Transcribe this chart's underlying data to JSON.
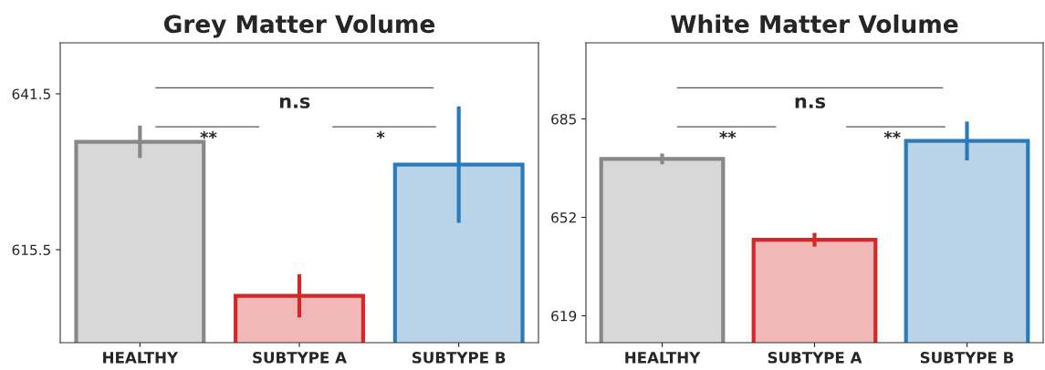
{
  "chart_data": [
    {
      "type": "bar",
      "title": "Grey Matter Volume",
      "categories": [
        "HEALTHY",
        "SUBTYPE A",
        "SUBTYPE B"
      ],
      "values": [
        633.5,
        607.8,
        629.7
      ],
      "errors": [
        2.7,
        3.6,
        9.7
      ],
      "colors": [
        "#888888",
        "#d62728",
        "#2b7bba"
      ],
      "ylim": [
        600,
        650
      ],
      "yticks": [
        615.5,
        641.5
      ],
      "grid": false,
      "legend": false,
      "annotations": [
        "n.s",
        "**",
        "*"
      ]
    },
    {
      "type": "bar",
      "title": "White Matter Volume",
      "categories": [
        "HEALTHY",
        "SUBTYPE A",
        "SUBTYPE B"
      ],
      "values": [
        671.6,
        644.5,
        677.6
      ],
      "errors": [
        1.8,
        2.3,
        6.5
      ],
      "colors": [
        "#888888",
        "#d62728",
        "#2b7bba"
      ],
      "ylim": [
        610,
        710.5
      ],
      "yticks": [
        619,
        652,
        685
      ],
      "grid": false,
      "legend": false,
      "annotations": [
        "n.s",
        "**",
        "**"
      ]
    }
  ]
}
